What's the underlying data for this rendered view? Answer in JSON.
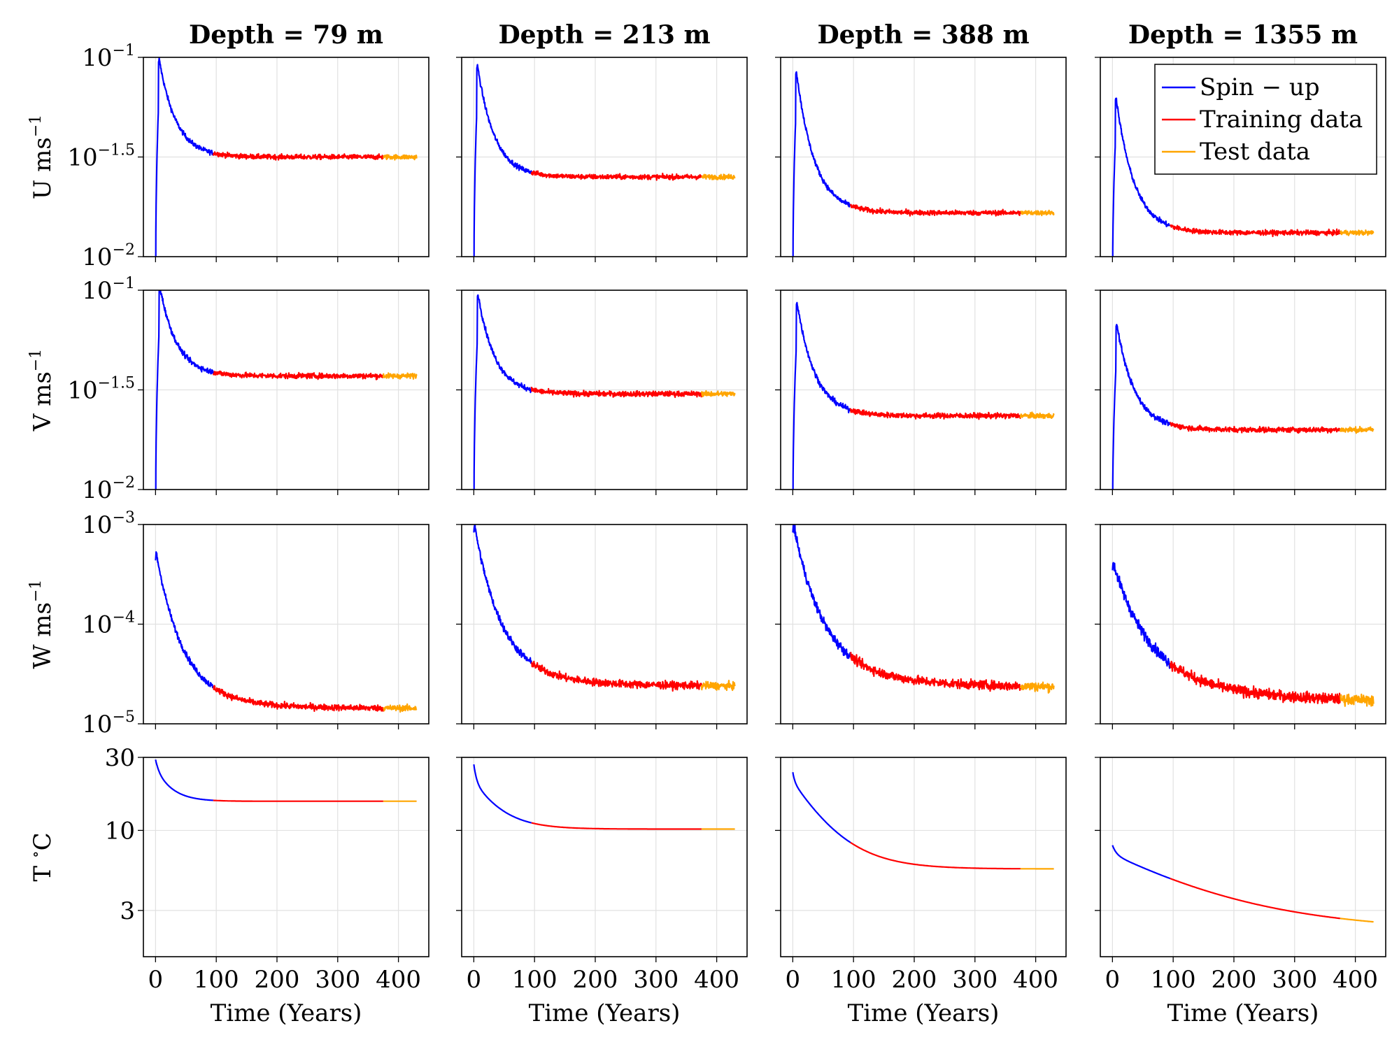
{
  "colors": {
    "spin_up": "#0000ff",
    "training": "#ff0000",
    "test": "#ffa500"
  },
  "chart_data": {
    "type": "line",
    "layout": "4x4 small multiples",
    "column_titles": [
      "Depth  =  79 m",
      "Depth  =  213 m",
      "Depth  =  388 m",
      "Depth  =  1355 m"
    ],
    "xlabel": "Time (Years)",
    "xlim": [
      -20,
      450
    ],
    "xticks": [
      0,
      100,
      200,
      300,
      400
    ],
    "legend": {
      "position": "top-right of last column, first row",
      "entries": [
        {
          "label": "Spin − up",
          "color": "#0000ff"
        },
        {
          "label": "Training data",
          "color": "#ff0000"
        },
        {
          "label": "Test data",
          "color": "#ffa500"
        }
      ]
    },
    "segments": {
      "spin_up_end": 95,
      "training_end": 375,
      "test_end": 430
    },
    "rows": [
      {
        "ylabel_main": "U ms",
        "ylabel_sup": "−1",
        "scale": "log10",
        "ylim_log10": [
          -2,
          -1
        ],
        "ytick_positions_log10": [
          -1,
          -1.5,
          -2
        ],
        "ytick_label_base": [
          "10",
          "10",
          "10"
        ],
        "ytick_label_exp": [
          "−1",
          "−1.5",
          "−2"
        ],
        "noise_log10": 0.012,
        "peak_time": 6,
        "panels": [
          {
            "peak_log10": -1.01,
            "plateau_log10": -1.5,
            "decay_years": 28,
            "late_drift_log10": 0.0,
            "late_tau_years": 150
          },
          {
            "peak_log10": -1.04,
            "plateau_log10": -1.6,
            "decay_years": 28,
            "late_drift_log10": 0.0,
            "late_tau_years": 150
          },
          {
            "peak_log10": -1.07,
            "plateau_log10": -1.78,
            "decay_years": 30,
            "late_drift_log10": 0.0,
            "late_tau_years": 150
          },
          {
            "peak_log10": -1.2,
            "plateau_log10": -1.88,
            "decay_years": 30,
            "late_drift_log10": 0.0,
            "late_tau_years": 150
          }
        ]
      },
      {
        "ylabel_main": "V ms",
        "ylabel_sup": "−1",
        "scale": "log10",
        "ylim_log10": [
          -2,
          -1
        ],
        "ytick_positions_log10": [
          -1,
          -1.5,
          -2
        ],
        "ytick_label_base": [
          "10",
          "10",
          "10"
        ],
        "ytick_label_exp": [
          "−1",
          "−1.5",
          "−2"
        ],
        "noise_log10": 0.013,
        "peak_time": 7,
        "panels": [
          {
            "peak_log10": -0.98,
            "plateau_log10": -1.43,
            "decay_years": 28,
            "late_drift_log10": 0.0,
            "late_tau_years": 150
          },
          {
            "peak_log10": -1.02,
            "plateau_log10": -1.52,
            "decay_years": 28,
            "late_drift_log10": 0.0,
            "late_tau_years": 150
          },
          {
            "peak_log10": -1.06,
            "plateau_log10": -1.63,
            "decay_years": 30,
            "late_drift_log10": 0.0,
            "late_tau_years": 150
          },
          {
            "peak_log10": -1.17,
            "plateau_log10": -1.7,
            "decay_years": 30,
            "late_drift_log10": 0.0,
            "late_tau_years": 150
          }
        ]
      },
      {
        "ylabel_main": "W ms",
        "ylabel_sup": "−1",
        "scale": "log10",
        "ylim_log10": [
          -5,
          -3
        ],
        "ytick_positions_log10": [
          -3,
          -4,
          -5
        ],
        "ytick_label_base": [
          "10",
          "10",
          "10"
        ],
        "ytick_label_exp": [
          "−3",
          "−4",
          "−5"
        ],
        "noise_log10": 0.03,
        "peak_time": 1,
        "panels": [
          {
            "peak_log10": -3.28,
            "plateau_log10": -4.8,
            "decay_years": 45,
            "late_drift_log10": -0.05,
            "late_tau_years": 200
          },
          {
            "peak_log10": -3.0,
            "plateau_log10": -4.55,
            "decay_years": 45,
            "late_drift_log10": -0.08,
            "late_tau_years": 200
          },
          {
            "peak_log10": -3.0,
            "plateau_log10": -4.5,
            "decay_years": 50,
            "late_drift_log10": -0.15,
            "late_tau_years": 220
          },
          {
            "peak_log10": -3.38,
            "plateau_log10": -4.55,
            "decay_years": 60,
            "late_drift_log10": -0.25,
            "late_tau_years": 220
          }
        ]
      },
      {
        "ylabel_main": "T ",
        "ylabel_sup": "∘",
        "ylabel_tail": "C",
        "scale": "log10",
        "ylim_log10": [
          0.175,
          1.477
        ],
        "ytick_positions_log10": [
          1.477,
          1.0,
          0.477
        ],
        "ytick_label_base": [
          "30",
          "10",
          "3"
        ],
        "ytick_label_exp": [
          "",
          "",
          ""
        ],
        "noise_log10": 0.0,
        "peak_time": 0,
        "panels": [
          {
            "start_value": 29,
            "fast_drop": 4,
            "fast_tau": 5,
            "end_value": 15.5,
            "slow_tau": 25
          },
          {
            "start_value": 27,
            "fast_drop": 6,
            "fast_tau": 4,
            "end_value": 10.2,
            "slow_tau": 40
          },
          {
            "start_value": 24,
            "fast_drop": 3,
            "fast_tau": 3,
            "end_value": 5.6,
            "slow_tau": 55
          },
          {
            "start_value": 8,
            "fast_drop": 1.0,
            "fast_tau": 6,
            "end_value": 2.2,
            "slow_tau": 160
          }
        ]
      }
    ]
  }
}
